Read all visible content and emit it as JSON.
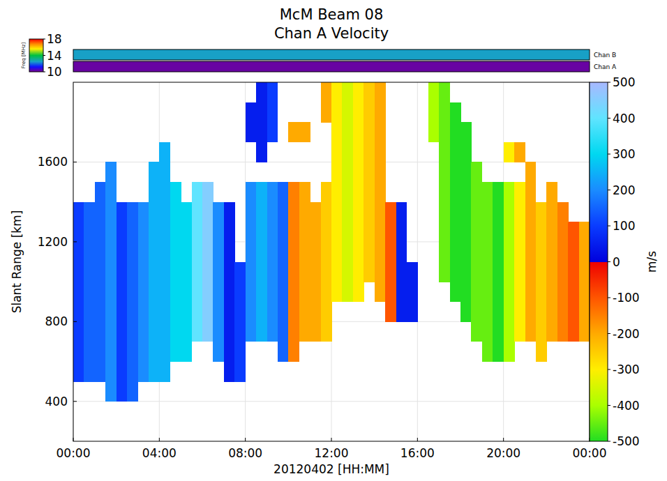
{
  "chart_data": {
    "type": "heatmap",
    "title": "McM Beam 08",
    "subtitle": "Chan A Velocity",
    "x_label": "20120402 [HH:MM]",
    "y_label": "Slant Range [km]",
    "xlim": [
      0,
      24
    ],
    "ylim": [
      200,
      2000
    ],
    "xticks": [
      {
        "value": 0,
        "label": "00:00"
      },
      {
        "value": 4,
        "label": "04:00"
      },
      {
        "value": 8,
        "label": "08:00"
      },
      {
        "value": 12,
        "label": "12:00"
      },
      {
        "value": 16,
        "label": "16:00"
      },
      {
        "value": 20,
        "label": "20:00"
      },
      {
        "value": 24,
        "label": "00:00"
      }
    ],
    "yticks": [
      400,
      800,
      1200,
      1600
    ],
    "grid": true,
    "x_bins": [
      0,
      0.5,
      1,
      1.5,
      2,
      2.5,
      3,
      3.5,
      4,
      4.5,
      5,
      5.5,
      6,
      6.5,
      7,
      7.5,
      8,
      8.5,
      9,
      9.5,
      10,
      10.5,
      11,
      11.5,
      12,
      12.5,
      13,
      13.5,
      14,
      14.5,
      15,
      15.5,
      16,
      16.5,
      17,
      17.5,
      18,
      18.5,
      19,
      19.5,
      20,
      20.5,
      21,
      21.5,
      22,
      22.5,
      23,
      23.5,
      24
    ],
    "y_bins": [
      200,
      300,
      400,
      500,
      600,
      700,
      800,
      900,
      1000,
      1100,
      1200,
      1300,
      1400,
      1500,
      1600,
      1700,
      1800,
      1900,
      2000
    ],
    "cells": [
      [
        null,
        null,
        null,
        null,
        null,
        null,
        null,
        null,
        null,
        null,
        null,
        null,
        null,
        null,
        null,
        null,
        null,
        null,
        null,
        null,
        null,
        null,
        null,
        null,
        null,
        null,
        null,
        null,
        null,
        null,
        null,
        null,
        null,
        null,
        null,
        null,
        null,
        null,
        null,
        null,
        null,
        null,
        null,
        null,
        null,
        null,
        null,
        null
      ],
      [
        null,
        null,
        null,
        null,
        null,
        null,
        null,
        null,
        null,
        null,
        null,
        null,
        null,
        null,
        null,
        null,
        null,
        null,
        null,
        null,
        null,
        null,
        null,
        null,
        null,
        null,
        null,
        null,
        null,
        null,
        null,
        null,
        null,
        null,
        null,
        null,
        null,
        null,
        null,
        null,
        null,
        null,
        null,
        null,
        null,
        null,
        null,
        null
      ],
      [
        null,
        null,
        null,
        200,
        100,
        150,
        null,
        null,
        null,
        null,
        null,
        null,
        null,
        null,
        null,
        null,
        null,
        null,
        null,
        null,
        null,
        null,
        null,
        null,
        null,
        null,
        null,
        null,
        null,
        null,
        null,
        null,
        null,
        null,
        null,
        null,
        null,
        null,
        null,
        null,
        null,
        null,
        null,
        null,
        null,
        null,
        null,
        null
      ],
      [
        100,
        150,
        150,
        200,
        100,
        150,
        200,
        250,
        250,
        null,
        null,
        null,
        null,
        null,
        50,
        100,
        null,
        null,
        null,
        null,
        null,
        null,
        null,
        null,
        null,
        null,
        null,
        null,
        null,
        null,
        null,
        null,
        null,
        null,
        null,
        null,
        null,
        null,
        null,
        null,
        null,
        null,
        null,
        null,
        null,
        null,
        null,
        null
      ],
      [
        100,
        150,
        150,
        200,
        100,
        150,
        200,
        250,
        250,
        300,
        300,
        null,
        null,
        200,
        50,
        100,
        null,
        null,
        null,
        150,
        -150,
        null,
        null,
        null,
        null,
        null,
        null,
        null,
        null,
        null,
        null,
        null,
        null,
        null,
        null,
        null,
        null,
        null,
        -450,
        -500,
        -400,
        null,
        null,
        -250,
        null,
        null,
        null,
        null
      ],
      [
        100,
        150,
        150,
        200,
        100,
        150,
        200,
        250,
        250,
        300,
        300,
        400,
        450,
        200,
        50,
        100,
        200,
        250,
        200,
        150,
        -150,
        -200,
        -200,
        -250,
        null,
        null,
        null,
        null,
        null,
        null,
        null,
        null,
        null,
        null,
        null,
        null,
        null,
        -450,
        -450,
        -500,
        -400,
        -300,
        -200,
        -250,
        -200,
        -150,
        -100,
        -200
      ],
      [
        100,
        150,
        150,
        200,
        100,
        150,
        200,
        250,
        250,
        300,
        300,
        400,
        450,
        200,
        50,
        100,
        200,
        250,
        200,
        150,
        -150,
        -200,
        -200,
        -250,
        null,
        null,
        null,
        null,
        null,
        -100,
        50,
        50,
        null,
        null,
        null,
        null,
        -500,
        -450,
        -450,
        -500,
        -400,
        -300,
        -200,
        -250,
        -200,
        -150,
        -100,
        -200
      ],
      [
        100,
        150,
        150,
        200,
        100,
        150,
        200,
        250,
        250,
        300,
        300,
        400,
        450,
        200,
        50,
        100,
        200,
        250,
        200,
        150,
        -150,
        -200,
        -200,
        -250,
        -300,
        -350,
        -300,
        null,
        -200,
        -100,
        50,
        50,
        null,
        null,
        null,
        -500,
        -500,
        -450,
        -450,
        -500,
        -400,
        -300,
        -200,
        -250,
        -200,
        -150,
        -100,
        -200
      ],
      [
        100,
        150,
        150,
        200,
        100,
        150,
        200,
        250,
        250,
        300,
        300,
        400,
        450,
        200,
        50,
        100,
        200,
        250,
        200,
        150,
        -150,
        -200,
        -200,
        -250,
        -300,
        -350,
        -300,
        -250,
        -200,
        -100,
        50,
        50,
        null,
        null,
        -450,
        -500,
        -500,
        -450,
        -450,
        -500,
        -400,
        -300,
        -200,
        -250,
        -200,
        -150,
        -100,
        -200
      ],
      [
        100,
        150,
        150,
        200,
        100,
        150,
        200,
        250,
        250,
        300,
        300,
        400,
        450,
        200,
        50,
        null,
        200,
        250,
        200,
        150,
        -150,
        -200,
        -200,
        -250,
        -300,
        -350,
        -300,
        -250,
        -200,
        -100,
        50,
        null,
        null,
        null,
        -450,
        -500,
        -500,
        -450,
        -450,
        -500,
        -400,
        -300,
        -200,
        -250,
        -200,
        -150,
        -100,
        -200
      ],
      [
        100,
        150,
        150,
        200,
        100,
        150,
        200,
        250,
        250,
        300,
        300,
        400,
        450,
        200,
        50,
        null,
        200,
        250,
        200,
        150,
        -150,
        -200,
        -200,
        -250,
        -300,
        -350,
        -300,
        -250,
        -200,
        -100,
        50,
        null,
        null,
        null,
        -450,
        -500,
        -500,
        -450,
        -450,
        -500,
        -400,
        -300,
        -200,
        -250,
        -200,
        -150,
        -100,
        -200
      ],
      [
        100,
        150,
        150,
        200,
        100,
        150,
        200,
        250,
        250,
        300,
        300,
        400,
        450,
        200,
        50,
        null,
        200,
        250,
        200,
        150,
        -150,
        -200,
        -200,
        -250,
        -300,
        -350,
        -300,
        -250,
        -200,
        -100,
        50,
        null,
        null,
        null,
        -450,
        -500,
        -500,
        -450,
        -450,
        -500,
        -400,
        -300,
        -200,
        -250,
        -200,
        -150,
        null,
        null
      ],
      [
        null,
        null,
        150,
        200,
        null,
        null,
        null,
        250,
        250,
        300,
        null,
        400,
        450,
        null,
        null,
        null,
        200,
        250,
        200,
        150,
        -150,
        -200,
        null,
        -250,
        -300,
        -350,
        -300,
        -250,
        -200,
        null,
        null,
        null,
        null,
        null,
        -450,
        -500,
        -500,
        -450,
        -450,
        -500,
        -400,
        -300,
        -200,
        null,
        -200,
        null,
        null,
        null
      ],
      [
        null,
        null,
        null,
        200,
        null,
        null,
        null,
        250,
        250,
        null,
        null,
        null,
        null,
        null,
        null,
        null,
        null,
        null,
        null,
        null,
        null,
        null,
        null,
        null,
        -300,
        -350,
        -300,
        -250,
        -200,
        null,
        null,
        null,
        null,
        null,
        -450,
        -500,
        -500,
        -450,
        null,
        null,
        null,
        null,
        -200,
        null,
        null,
        null,
        null,
        null
      ],
      [
        null,
        null,
        null,
        null,
        null,
        null,
        null,
        null,
        250,
        null,
        null,
        null,
        null,
        null,
        null,
        null,
        null,
        50,
        null,
        null,
        null,
        null,
        null,
        null,
        -300,
        -350,
        -300,
        -250,
        -200,
        null,
        null,
        null,
        null,
        null,
        -450,
        -500,
        -500,
        null,
        null,
        null,
        -300,
        -200,
        null,
        null,
        null,
        null,
        null,
        null
      ],
      [
        null,
        null,
        null,
        null,
        null,
        null,
        null,
        null,
        null,
        null,
        null,
        null,
        null,
        null,
        null,
        null,
        50,
        50,
        100,
        null,
        -200,
        -200,
        null,
        null,
        -300,
        -350,
        -300,
        -250,
        -200,
        null,
        null,
        null,
        null,
        -400,
        -450,
        -500,
        -500,
        null,
        null,
        null,
        null,
        null,
        null,
        null,
        null,
        null,
        null,
        null
      ],
      [
        null,
        null,
        null,
        null,
        null,
        null,
        null,
        null,
        null,
        null,
        null,
        null,
        null,
        null,
        null,
        null,
        50,
        50,
        100,
        null,
        null,
        null,
        null,
        -200,
        -300,
        -350,
        -300,
        -250,
        -200,
        null,
        null,
        null,
        null,
        -400,
        -450,
        -500,
        null,
        null,
        null,
        null,
        null,
        null,
        null,
        null,
        null,
        null,
        null,
        null
      ],
      [
        null,
        null,
        null,
        null,
        null,
        null,
        null,
        null,
        null,
        null,
        null,
        null,
        null,
        null,
        null,
        null,
        null,
        50,
        100,
        null,
        null,
        null,
        null,
        -200,
        -300,
        -350,
        -300,
        -250,
        -200,
        null,
        null,
        null,
        null,
        -400,
        -450,
        null,
        null,
        null,
        null,
        null,
        null,
        null,
        null,
        null,
        null,
        null,
        null,
        null
      ]
    ],
    "colorbar": {
      "label": "m/s",
      "range": [
        -500,
        500
      ],
      "ticks": [
        -500,
        -400,
        -300,
        -200,
        -100,
        0,
        100,
        200,
        300,
        400,
        500
      ]
    },
    "freq_colorbar": {
      "label": "Freq [MHz]",
      "range": [
        10,
        18
      ],
      "ticks": [
        10,
        14,
        18
      ]
    },
    "channels": [
      {
        "name": "Chan B",
        "freq": 12.5
      },
      {
        "name": "Chan A",
        "freq": 10.2
      }
    ]
  }
}
